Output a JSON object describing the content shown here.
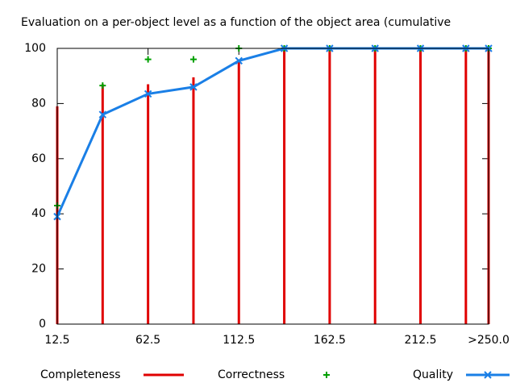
{
  "chart_data": {
    "type": "impulse-line",
    "title": "Evaluation on a per-object level as a function of the object area (cumulative",
    "x": [
      12.5,
      37.5,
      62.5,
      87.5,
      112.5,
      137.5,
      162.5,
      187.5,
      212.5,
      237.5,
      250
    ],
    "series": [
      {
        "name": "Completeness",
        "color": "#e00000",
        "style": "impulses",
        "values": [
          79,
          87,
          87,
          89.5,
          96,
          100,
          100,
          100,
          100,
          100,
          100
        ]
      },
      {
        "name": "Correctness",
        "color": "#00a000",
        "style": "points",
        "values": [
          43,
          86.5,
          96,
          96,
          100,
          100,
          100,
          100,
          100,
          100,
          100
        ]
      },
      {
        "name": "Quality",
        "color": "#1a7fe6",
        "style": "linespoints",
        "values": [
          39,
          76,
          83.5,
          86,
          95.5,
          100,
          100,
          100,
          100,
          100,
          100
        ]
      }
    ],
    "xlim": [
      12.5,
      250
    ],
    "xticks": [
      12.5,
      62.5,
      112.5,
      162.5,
      212.5,
      {
        "value": 250,
        "label": ">250.0"
      }
    ],
    "ylim": [
      0,
      100
    ],
    "yticks": [
      0,
      20,
      40,
      60,
      80,
      100
    ],
    "legend": "bottom"
  }
}
